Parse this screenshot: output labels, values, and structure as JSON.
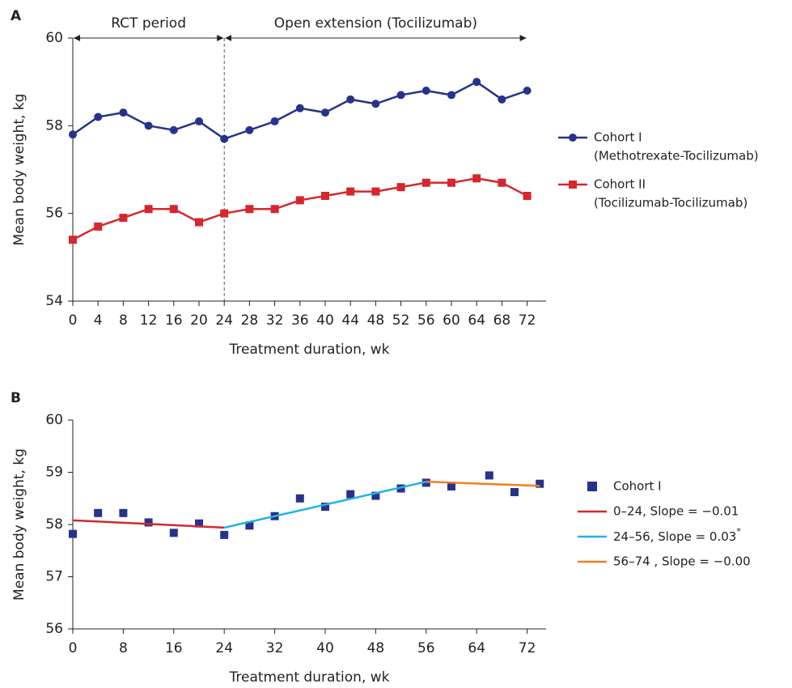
{
  "chart_data": [
    {
      "type": "line",
      "panel": "A",
      "x": [
        0,
        4,
        8,
        12,
        16,
        20,
        24,
        28,
        32,
        36,
        40,
        44,
        48,
        52,
        56,
        60,
        64,
        68,
        72
      ],
      "xlim": [
        0,
        75
      ],
      "xticks": [
        0,
        4,
        8,
        12,
        16,
        20,
        24,
        28,
        32,
        36,
        40,
        44,
        48,
        52,
        56,
        60,
        64,
        68,
        72
      ],
      "ylim": [
        54,
        60
      ],
      "yticks": [
        54,
        56,
        58,
        60
      ],
      "x_label": "Treatment duration, wk",
      "y_label": "Mean body weight, kg",
      "periods": [
        {
          "label": "RCT period",
          "start": 0,
          "end": 24
        },
        {
          "label": "Open extension (Tocilizumab)",
          "start": 24,
          "end": 72
        }
      ],
      "series": [
        {
          "name": "Cohort I",
          "description": "(Methotrexate-Tocilizumab)",
          "color": "#26328c",
          "marker": "circle",
          "values": [
            57.8,
            58.2,
            58.3,
            58.0,
            57.9,
            58.1,
            57.7,
            57.9,
            58.1,
            58.4,
            58.3,
            58.6,
            58.5,
            58.7,
            58.8,
            58.7,
            59.0,
            58.6,
            58.8
          ]
        },
        {
          "name": "Cohort II",
          "description": "(Tocilizumab-Tocilizumab)",
          "color": "#d7262d",
          "marker": "square",
          "values": [
            55.4,
            55.7,
            55.9,
            56.1,
            56.1,
            55.8,
            56.0,
            56.1,
            56.1,
            56.3,
            56.4,
            56.5,
            56.5,
            56.6,
            56.7,
            56.7,
            56.8,
            56.7,
            56.4
          ]
        }
      ]
    },
    {
      "type": "scatter",
      "panel": "B",
      "xlim": [
        0,
        75
      ],
      "xticks": [
        0,
        8,
        16,
        24,
        32,
        40,
        48,
        56,
        64,
        72
      ],
      "ylim": [
        56,
        60
      ],
      "yticks": [
        56,
        57,
        58,
        59,
        60
      ],
      "x_label": "Treatment duration, wk",
      "y_label": "Mean body weight, kg",
      "series": [
        {
          "name": "Cohort I",
          "type": "scatter",
          "color": "#26328c",
          "x": [
            0,
            4,
            8,
            12,
            16,
            20,
            24,
            28,
            32,
            36,
            40,
            44,
            48,
            52,
            56,
            60,
            66,
            70,
            74
          ],
          "values": [
            57.82,
            58.22,
            58.22,
            58.04,
            57.84,
            58.02,
            57.8,
            57.98,
            58.16,
            58.5,
            58.34,
            58.58,
            58.55,
            58.69,
            58.8,
            58.73,
            58.94,
            58.62,
            58.78
          ]
        },
        {
          "name": "0–24, Slope = −0.01",
          "type": "line",
          "color": "#d7262d",
          "x": [
            0,
            24
          ],
          "values": [
            58.08,
            57.94
          ]
        },
        {
          "name": "24–56, Slope = 0.03",
          "note": "*",
          "type": "line",
          "color": "#1fb4e6",
          "x": [
            24,
            56
          ],
          "values": [
            57.94,
            58.82
          ]
        },
        {
          "name": "56–74 , Slope = −0.00",
          "type": "line",
          "color": "#f07f22",
          "x": [
            56,
            74
          ],
          "values": [
            58.82,
            58.74
          ]
        }
      ]
    }
  ]
}
